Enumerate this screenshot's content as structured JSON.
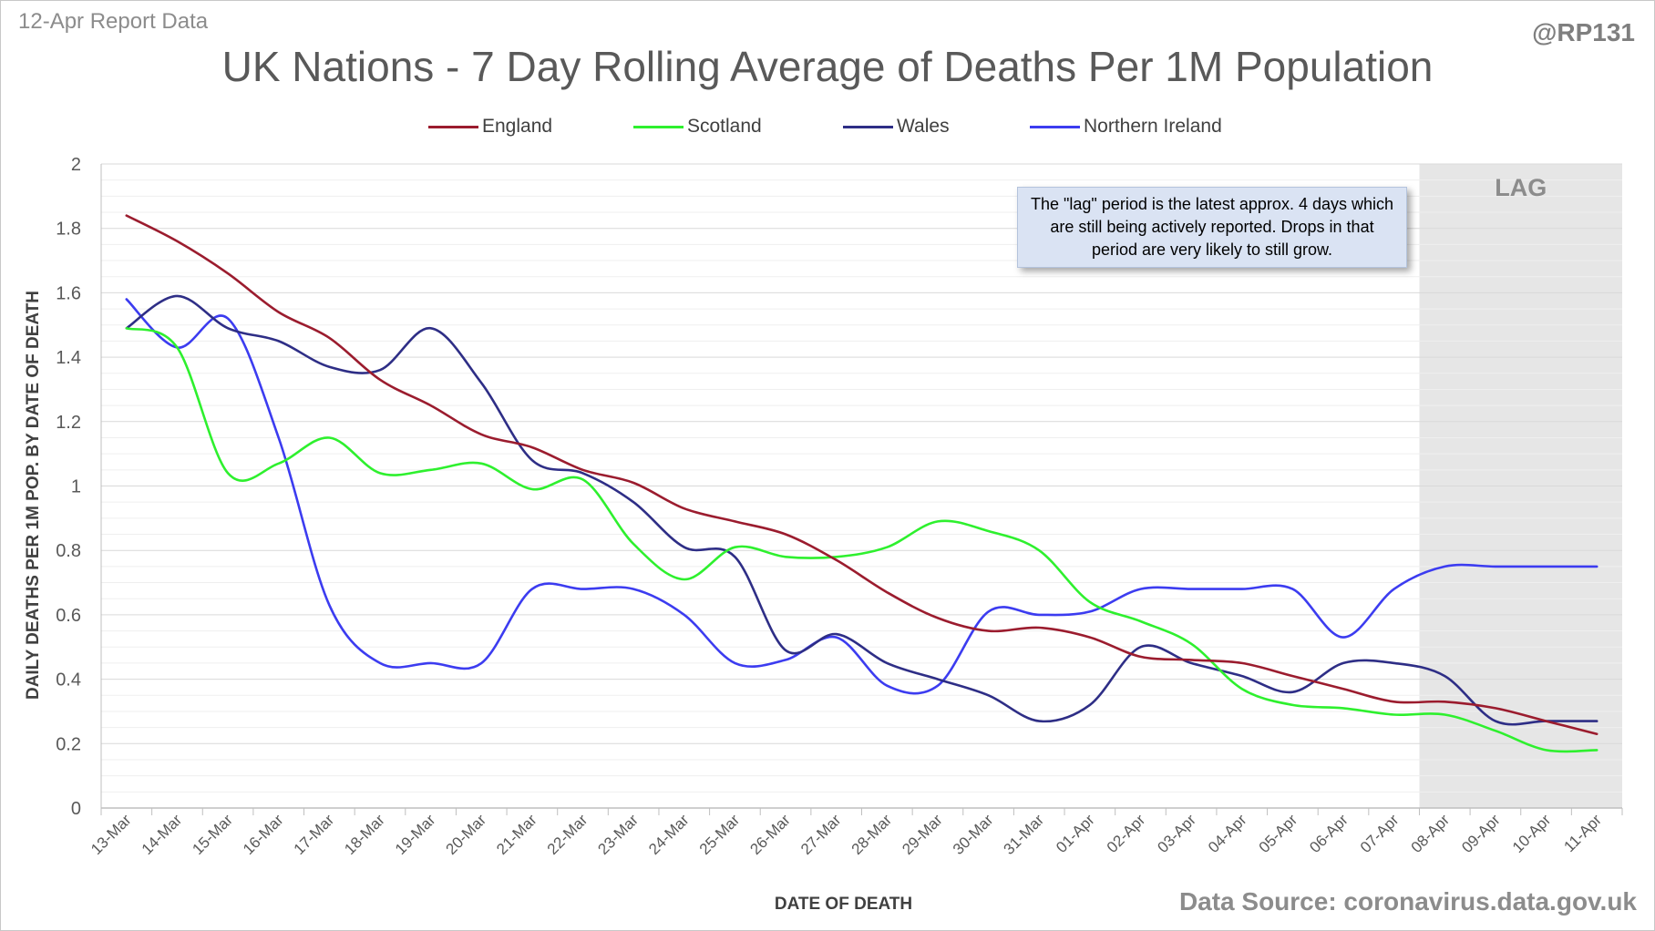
{
  "header": {
    "report_label": "12-Apr Report Data",
    "handle": "@RP131",
    "title": "UK Nations - 7 Day Rolling Average of Deaths Per 1M Population"
  },
  "footer": {
    "source": "Data Source: coronavirus.data.gov.uk"
  },
  "annotation": {
    "text": "The \"lag\" period is the latest approx. 4 days which are still being actively reported. Drops in that period are very likely to still grow."
  },
  "colors": {
    "England": "#9b1c2e",
    "Scotland": "#2ef02e",
    "Wales": "#2e2e86",
    "Northern Ireland": "#3c3cf0",
    "lag_shade": "#e6e6e6",
    "grid": "#d9d9d9"
  },
  "chart_data": {
    "type": "line",
    "xlabel": "DATE OF DEATH",
    "ylabel": "DAILY DEATHS PER 1M POP. BY DATE OF DEATH",
    "ylim": [
      0,
      2
    ],
    "yticks": [
      "0",
      "0.2",
      "0.4",
      "0.6",
      "0.8",
      "1",
      "1.2",
      "1.4",
      "1.6",
      "1.8",
      "2"
    ],
    "grid": true,
    "legend_position": "top",
    "lag_region": {
      "label": "LAG",
      "from": "08-Apr",
      "to": "11-Apr"
    },
    "x": [
      "13-Mar",
      "14-Mar",
      "15-Mar",
      "16-Mar",
      "17-Mar",
      "18-Mar",
      "19-Mar",
      "20-Mar",
      "21-Mar",
      "22-Mar",
      "23-Mar",
      "24-Mar",
      "25-Mar",
      "26-Mar",
      "27-Mar",
      "28-Mar",
      "29-Mar",
      "30-Mar",
      "31-Mar",
      "01-Apr",
      "02-Apr",
      "03-Apr",
      "04-Apr",
      "05-Apr",
      "06-Apr",
      "07-Apr",
      "08-Apr",
      "09-Apr",
      "10-Apr",
      "11-Apr"
    ],
    "series": [
      {
        "name": "England",
        "values": [
          1.84,
          1.76,
          1.66,
          1.54,
          1.46,
          1.33,
          1.25,
          1.16,
          1.12,
          1.05,
          1.01,
          0.93,
          0.89,
          0.85,
          0.77,
          0.67,
          0.59,
          0.55,
          0.56,
          0.53,
          0.47,
          0.46,
          0.45,
          0.41,
          0.37,
          0.33,
          0.33,
          0.31,
          0.27,
          0.23
        ]
      },
      {
        "name": "Scotland",
        "values": [
          1.49,
          1.43,
          1.04,
          1.07,
          1.15,
          1.04,
          1.05,
          1.07,
          0.99,
          1.02,
          0.82,
          0.71,
          0.81,
          0.78,
          0.78,
          0.81,
          0.89,
          0.86,
          0.8,
          0.64,
          0.58,
          0.51,
          0.37,
          0.32,
          0.31,
          0.29,
          0.29,
          0.24,
          0.18,
          0.18
        ]
      },
      {
        "name": "Wales",
        "values": [
          1.49,
          1.59,
          1.49,
          1.45,
          1.37,
          1.36,
          1.49,
          1.32,
          1.08,
          1.04,
          0.95,
          0.81,
          0.78,
          0.49,
          0.54,
          0.45,
          0.4,
          0.35,
          0.27,
          0.32,
          0.5,
          0.45,
          0.41,
          0.36,
          0.45,
          0.45,
          0.41,
          0.27,
          0.27,
          0.27
        ]
      },
      {
        "name": "Northern Ireland",
        "values": [
          1.58,
          1.43,
          1.52,
          1.15,
          0.63,
          0.45,
          0.45,
          0.45,
          0.68,
          0.68,
          0.68,
          0.6,
          0.45,
          0.46,
          0.53,
          0.38,
          0.38,
          0.61,
          0.6,
          0.61,
          0.68,
          0.68,
          0.68,
          0.68,
          0.53,
          0.68,
          0.75,
          0.75,
          0.75,
          0.75
        ]
      }
    ]
  }
}
